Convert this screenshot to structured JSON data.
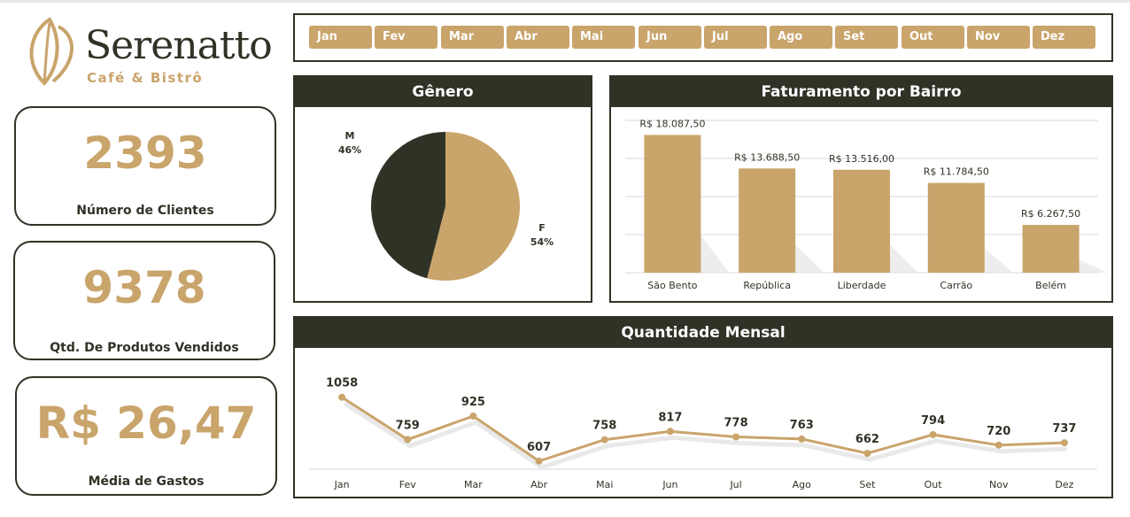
{
  "brand": {
    "name": "Serenatto",
    "tagline": "Café & Bistrô"
  },
  "kpis": [
    {
      "value": "2393",
      "label": "Número de Clientes"
    },
    {
      "value": "9378",
      "label": "Qtd. De Produtos Vendidos"
    },
    {
      "value": "R$ 26,47",
      "label": "Média de Gastos"
    }
  ],
  "months": [
    "Jan",
    "Fev",
    "Mar",
    "Abr",
    "Mai",
    "Jun",
    "Jul",
    "Ago",
    "Set",
    "Out",
    "Nov",
    "Dez"
  ],
  "colors": {
    "dark": "#2f3326",
    "gold": "#c9a46b"
  },
  "chart_data": [
    {
      "type": "pie",
      "title": "Gênero",
      "categories": [
        "F",
        "M"
      ],
      "values": [
        54,
        46
      ],
      "labels": [
        "F\n54%",
        "M\n46%"
      ],
      "colors": [
        "#c9a46b",
        "#2f3326"
      ]
    },
    {
      "type": "bar",
      "title": "Faturamento por Bairro",
      "categories": [
        "São Bento",
        "República",
        "Liberdade",
        "Carrão",
        "Belém"
      ],
      "values": [
        18087.5,
        13688.5,
        13516.0,
        11784.5,
        6267.5
      ],
      "data_labels": [
        "R$ 18.087,50",
        "R$ 13.688,50",
        "R$ 13.516,00",
        "R$ 11.784,50",
        "R$ 6.267,50"
      ],
      "ylim": [
        0,
        20000
      ],
      "grid": true,
      "color": "#c9a46b"
    },
    {
      "type": "line",
      "title": "Quantidade Mensal",
      "categories": [
        "Jan",
        "Fev",
        "Mar",
        "Abr",
        "Mai",
        "Jun",
        "Jul",
        "Ago",
        "Set",
        "Out",
        "Nov",
        "Dez"
      ],
      "values": [
        1058,
        759,
        925,
        607,
        758,
        817,
        778,
        763,
        662,
        794,
        720,
        737
      ],
      "color": "#c9a46b"
    }
  ]
}
